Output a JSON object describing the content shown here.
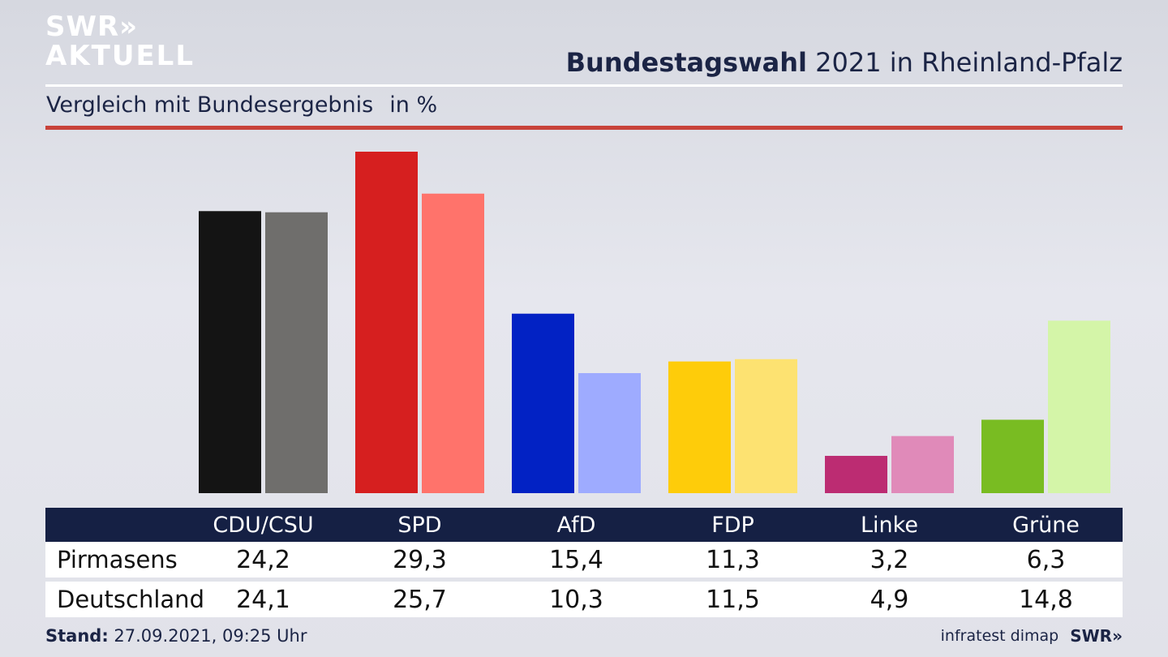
{
  "logo": {
    "line1": "SWR»",
    "line2": "AKTUELL"
  },
  "header": {
    "title_bold": "Bundestagswahl",
    "title_rest": " 2021 in Rheinland-Pfalz"
  },
  "subheader": {
    "text": "Vergleich mit Bundesergebnis",
    "unit": "in %"
  },
  "table": {
    "rows": [
      {
        "label": "Pirmasens",
        "values": [
          "24,2",
          "29,3",
          "15,4",
          "11,3",
          "3,2",
          "6,3"
        ]
      },
      {
        "label": "Deutschland",
        "values": [
          "24,1",
          "25,7",
          "10,3",
          "11,5",
          "4,9",
          "14,8"
        ]
      }
    ]
  },
  "footer": {
    "stand_label": "Stand:",
    "stand_value": " 27.09.2021, 09:25 Uhr",
    "source": "infratest dimap",
    "brand": "SWR»"
  },
  "chart_data": {
    "type": "bar",
    "categories": [
      "CDU/CSU",
      "SPD",
      "AfD",
      "FDP",
      "Linke",
      "Grüne"
    ],
    "series": [
      {
        "name": "Pirmasens",
        "values": [
          24.2,
          29.3,
          15.4,
          11.3,
          3.2,
          6.3
        ],
        "colors": [
          "#141414",
          "#d61f1f",
          "#0222c4",
          "#fecc0a",
          "#bc2c72",
          "#79bc22"
        ]
      },
      {
        "name": "Deutschland",
        "values": [
          24.1,
          25.7,
          10.3,
          11.5,
          4.9,
          14.8
        ],
        "colors": [
          "#6f6e6c",
          "#ff736b",
          "#9eabff",
          "#fde271",
          "#e08ab9",
          "#d4f5a8"
        ]
      }
    ],
    "ylim": [
      0,
      29.3
    ],
    "grid": false
  }
}
